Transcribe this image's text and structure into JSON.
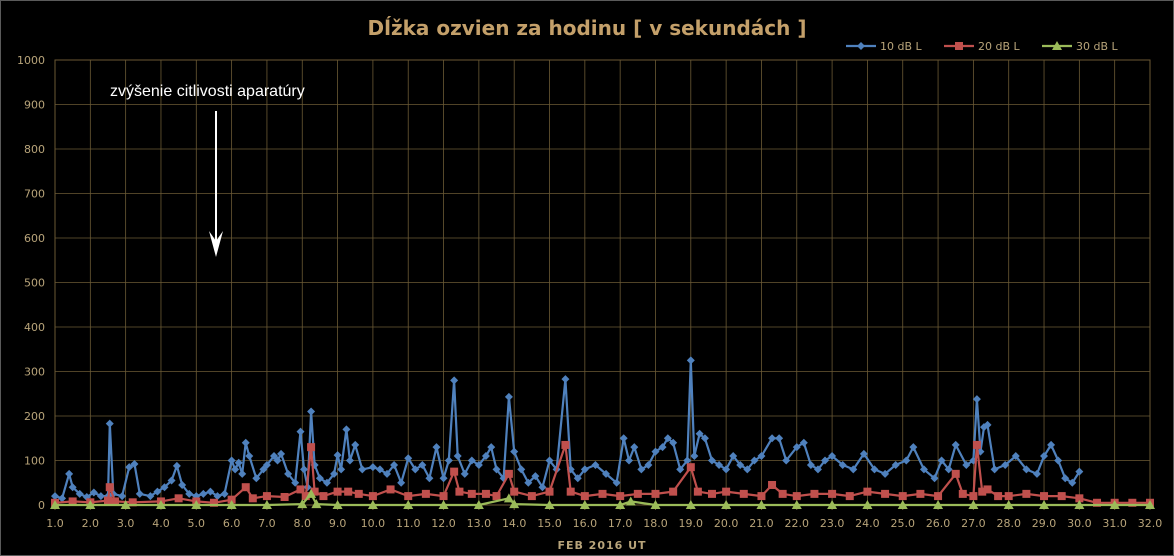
{
  "chart_data": {
    "type": "line",
    "title": "Dĺžka ozvien za hodinu [ v sekundách ]",
    "xlabel": "FEB  2016  UT",
    "ylabel": "",
    "xlim": [
      1.0,
      32.0
    ],
    "ylim": [
      0,
      1000
    ],
    "xticks": [
      "1.0",
      "2.0",
      "3.0",
      "4.0",
      "5.0",
      "6.0",
      "7.0",
      "8.0",
      "9.0",
      "10.0",
      "11.0",
      "12.0",
      "13.0",
      "14.0",
      "15.0",
      "16.0",
      "17.0",
      "18.0",
      "19.0",
      "20.0",
      "21.0",
      "22.0",
      "23.0",
      "24.0",
      "25.0",
      "26.0",
      "27.0",
      "28.0",
      "29.0",
      "30.0",
      "31.0",
      "32.0"
    ],
    "yticks": [
      "0",
      "100",
      "200",
      "300",
      "400",
      "500",
      "600",
      "700",
      "800",
      "900",
      "1000"
    ],
    "grid": true,
    "legend_position": "top-right",
    "annotation": {
      "text": "zvýšenie citlivosti aparatúry",
      "x": 5.6,
      "y": 560
    },
    "series": [
      {
        "name": "10 dB L",
        "color": "#4f81bd",
        "marker": "diamond",
        "points": [
          [
            1.0,
            20
          ],
          [
            1.2,
            15
          ],
          [
            1.4,
            70
          ],
          [
            1.5,
            40
          ],
          [
            1.7,
            25
          ],
          [
            1.9,
            18
          ],
          [
            2.1,
            28
          ],
          [
            2.3,
            20
          ],
          [
            2.5,
            20
          ],
          [
            2.55,
            183
          ],
          [
            2.65,
            25
          ],
          [
            2.9,
            20
          ],
          [
            3.1,
            85
          ],
          [
            3.25,
            92
          ],
          [
            3.4,
            25
          ],
          [
            3.7,
            20
          ],
          [
            3.9,
            30
          ],
          [
            4.1,
            40
          ],
          [
            4.3,
            55
          ],
          [
            4.45,
            88
          ],
          [
            4.6,
            45
          ],
          [
            4.8,
            25
          ],
          [
            5.0,
            20
          ],
          [
            5.2,
            25
          ],
          [
            5.4,
            30
          ],
          [
            5.6,
            20
          ],
          [
            5.8,
            25
          ],
          [
            6.0,
            100
          ],
          [
            6.1,
            80
          ],
          [
            6.2,
            95
          ],
          [
            6.3,
            70
          ],
          [
            6.4,
            140
          ],
          [
            6.5,
            110
          ],
          [
            6.7,
            60
          ],
          [
            6.9,
            80
          ],
          [
            7.0,
            90
          ],
          [
            7.2,
            110
          ],
          [
            7.3,
            100
          ],
          [
            7.4,
            115
          ],
          [
            7.6,
            70
          ],
          [
            7.8,
            50
          ],
          [
            7.95,
            165
          ],
          [
            8.05,
            80
          ],
          [
            8.15,
            40
          ],
          [
            8.25,
            210
          ],
          [
            8.35,
            90
          ],
          [
            8.5,
            60
          ],
          [
            8.7,
            50
          ],
          [
            8.9,
            70
          ],
          [
            9.0,
            112
          ],
          [
            9.1,
            80
          ],
          [
            9.25,
            170
          ],
          [
            9.35,
            100
          ],
          [
            9.5,
            135
          ],
          [
            9.7,
            80
          ],
          [
            10.0,
            85
          ],
          [
            10.2,
            80
          ],
          [
            10.4,
            70
          ],
          [
            10.6,
            90
          ],
          [
            10.8,
            50
          ],
          [
            11.0,
            105
          ],
          [
            11.2,
            80
          ],
          [
            11.4,
            90
          ],
          [
            11.6,
            60
          ],
          [
            11.8,
            130
          ],
          [
            12.0,
            60
          ],
          [
            12.15,
            100
          ],
          [
            12.3,
            280
          ],
          [
            12.4,
            110
          ],
          [
            12.6,
            70
          ],
          [
            12.8,
            100
          ],
          [
            13.0,
            90
          ],
          [
            13.2,
            110
          ],
          [
            13.35,
            130
          ],
          [
            13.5,
            80
          ],
          [
            13.7,
            60
          ],
          [
            13.85,
            243
          ],
          [
            14.0,
            120
          ],
          [
            14.2,
            80
          ],
          [
            14.4,
            50
          ],
          [
            14.6,
            65
          ],
          [
            14.8,
            40
          ],
          [
            15.0,
            100
          ],
          [
            15.2,
            80
          ],
          [
            15.45,
            283
          ],
          [
            15.6,
            80
          ],
          [
            15.8,
            60
          ],
          [
            16.0,
            80
          ],
          [
            16.3,
            90
          ],
          [
            16.6,
            70
          ],
          [
            16.9,
            50
          ],
          [
            17.1,
            150
          ],
          [
            17.25,
            100
          ],
          [
            17.4,
            130
          ],
          [
            17.6,
            80
          ],
          [
            17.8,
            90
          ],
          [
            18.0,
            120
          ],
          [
            18.2,
            130
          ],
          [
            18.35,
            150
          ],
          [
            18.5,
            140
          ],
          [
            18.7,
            80
          ],
          [
            18.9,
            100
          ],
          [
            19.0,
            325
          ],
          [
            19.1,
            110
          ],
          [
            19.25,
            160
          ],
          [
            19.4,
            150
          ],
          [
            19.6,
            100
          ],
          [
            19.8,
            90
          ],
          [
            20.0,
            80
          ],
          [
            20.2,
            110
          ],
          [
            20.4,
            90
          ],
          [
            20.6,
            80
          ],
          [
            20.8,
            100
          ],
          [
            21.0,
            110
          ],
          [
            21.3,
            150
          ],
          [
            21.5,
            150
          ],
          [
            21.7,
            100
          ],
          [
            22.0,
            130
          ],
          [
            22.2,
            140
          ],
          [
            22.4,
            90
          ],
          [
            22.6,
            80
          ],
          [
            22.8,
            100
          ],
          [
            23.0,
            110
          ],
          [
            23.3,
            90
          ],
          [
            23.6,
            80
          ],
          [
            23.9,
            115
          ],
          [
            24.2,
            80
          ],
          [
            24.5,
            70
          ],
          [
            24.8,
            90
          ],
          [
            25.1,
            100
          ],
          [
            25.3,
            130
          ],
          [
            25.6,
            80
          ],
          [
            25.9,
            60
          ],
          [
            26.1,
            100
          ],
          [
            26.3,
            80
          ],
          [
            26.5,
            135
          ],
          [
            26.8,
            90
          ],
          [
            27.0,
            100
          ],
          [
            27.1,
            238
          ],
          [
            27.2,
            120
          ],
          [
            27.3,
            175
          ],
          [
            27.4,
            180
          ],
          [
            27.6,
            80
          ],
          [
            27.9,
            90
          ],
          [
            28.2,
            110
          ],
          [
            28.5,
            80
          ],
          [
            28.8,
            70
          ],
          [
            29.0,
            110
          ],
          [
            29.2,
            135
          ],
          [
            29.4,
            100
          ],
          [
            29.6,
            60
          ],
          [
            29.8,
            50
          ],
          [
            30.0,
            75
          ]
        ]
      },
      {
        "name": "20 dB L",
        "color": "#c0504d",
        "marker": "square",
        "points": [
          [
            1.0,
            5
          ],
          [
            1.5,
            8
          ],
          [
            2.0,
            6
          ],
          [
            2.5,
            10
          ],
          [
            2.55,
            40
          ],
          [
            2.7,
            8
          ],
          [
            3.2,
            6
          ],
          [
            4.0,
            8
          ],
          [
            4.5,
            15
          ],
          [
            5.0,
            8
          ],
          [
            5.5,
            5
          ],
          [
            6.0,
            12
          ],
          [
            6.4,
            40
          ],
          [
            6.6,
            15
          ],
          [
            7.0,
            20
          ],
          [
            7.5,
            18
          ],
          [
            7.95,
            35
          ],
          [
            8.1,
            20
          ],
          [
            8.25,
            130
          ],
          [
            8.35,
            30
          ],
          [
            8.6,
            20
          ],
          [
            9.0,
            30
          ],
          [
            9.3,
            30
          ],
          [
            9.6,
            25
          ],
          [
            10.0,
            20
          ],
          [
            10.5,
            35
          ],
          [
            11.0,
            20
          ],
          [
            11.5,
            25
          ],
          [
            12.0,
            20
          ],
          [
            12.3,
            75
          ],
          [
            12.45,
            30
          ],
          [
            12.8,
            25
          ],
          [
            13.2,
            25
          ],
          [
            13.5,
            20
          ],
          [
            13.85,
            70
          ],
          [
            14.0,
            30
          ],
          [
            14.5,
            20
          ],
          [
            15.0,
            30
          ],
          [
            15.45,
            135
          ],
          [
            15.6,
            30
          ],
          [
            16.0,
            20
          ],
          [
            16.5,
            25
          ],
          [
            17.0,
            20
          ],
          [
            17.5,
            25
          ],
          [
            18.0,
            25
          ],
          [
            18.5,
            30
          ],
          [
            19.0,
            85
          ],
          [
            19.2,
            30
          ],
          [
            19.6,
            25
          ],
          [
            20.0,
            30
          ],
          [
            20.5,
            25
          ],
          [
            21.0,
            20
          ],
          [
            21.3,
            45
          ],
          [
            21.6,
            25
          ],
          [
            22.0,
            20
          ],
          [
            22.5,
            25
          ],
          [
            23.0,
            25
          ],
          [
            23.5,
            20
          ],
          [
            24.0,
            30
          ],
          [
            24.5,
            25
          ],
          [
            25.0,
            20
          ],
          [
            25.5,
            25
          ],
          [
            26.0,
            20
          ],
          [
            26.5,
            70
          ],
          [
            26.7,
            25
          ],
          [
            27.0,
            20
          ],
          [
            27.1,
            135
          ],
          [
            27.25,
            30
          ],
          [
            27.4,
            35
          ],
          [
            27.7,
            20
          ],
          [
            28.0,
            20
          ],
          [
            28.5,
            25
          ],
          [
            29.0,
            20
          ],
          [
            29.5,
            20
          ],
          [
            30.0,
            15
          ],
          [
            30.5,
            5
          ],
          [
            31.0,
            5
          ],
          [
            31.5,
            5
          ],
          [
            32.0,
            5
          ]
        ]
      },
      {
        "name": "30 dB L",
        "color": "#9bbb59",
        "marker": "triangle",
        "points": [
          [
            1.0,
            0
          ],
          [
            2.0,
            0
          ],
          [
            3.0,
            0
          ],
          [
            4.0,
            0
          ],
          [
            5.0,
            0
          ],
          [
            6.0,
            0
          ],
          [
            7.0,
            0
          ],
          [
            8.0,
            2
          ],
          [
            8.25,
            25
          ],
          [
            8.4,
            2
          ],
          [
            9.0,
            0
          ],
          [
            10.0,
            0
          ],
          [
            11.0,
            0
          ],
          [
            12.0,
            0
          ],
          [
            13.0,
            0
          ],
          [
            13.85,
            15
          ],
          [
            14.0,
            2
          ],
          [
            15.0,
            0
          ],
          [
            16.0,
            0
          ],
          [
            17.0,
            0
          ],
          [
            17.3,
            8
          ],
          [
            18.0,
            0
          ],
          [
            19.0,
            0
          ],
          [
            20.0,
            0
          ],
          [
            21.0,
            0
          ],
          [
            22.0,
            0
          ],
          [
            23.0,
            0
          ],
          [
            24.0,
            0
          ],
          [
            25.0,
            0
          ],
          [
            26.0,
            0
          ],
          [
            27.0,
            0
          ],
          [
            28.0,
            0
          ],
          [
            29.0,
            0
          ],
          [
            30.0,
            0
          ],
          [
            31.0,
            0
          ],
          [
            32.0,
            0
          ]
        ]
      }
    ]
  }
}
